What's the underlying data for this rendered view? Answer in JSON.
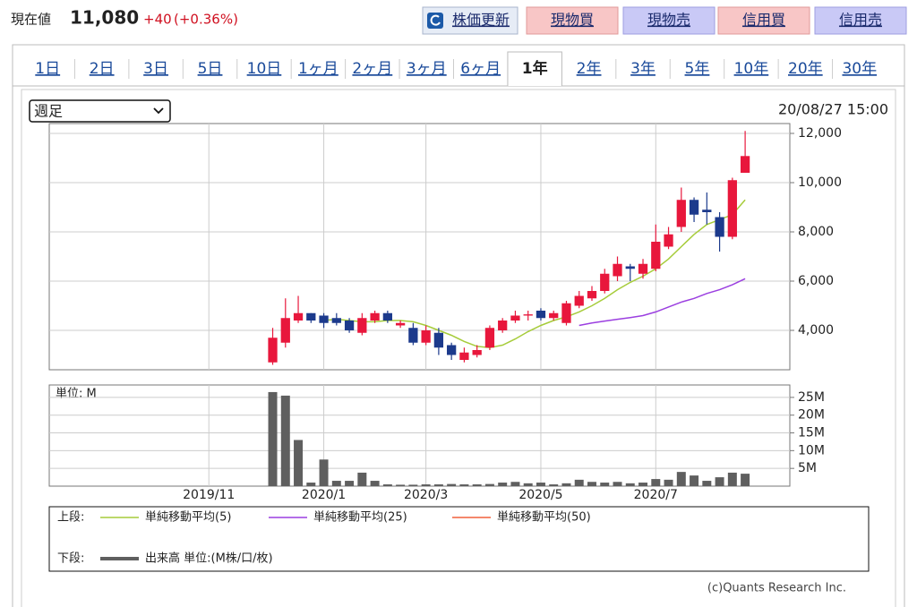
{
  "header": {
    "label": "現在値",
    "price": "11,080",
    "change": "+40",
    "change_pct": "(+0.36%)",
    "buttons": [
      "株価更新",
      "現物買",
      "現物売",
      "信用買",
      "信用売"
    ]
  },
  "tabs": [
    "1日",
    "2日",
    "3日",
    "5日",
    "10日",
    "1ヶ月",
    "2ヶ月",
    "3ヶ月",
    "6ヶ月",
    "1年",
    "2年",
    "3年",
    "5年",
    "10年",
    "20年",
    "30年"
  ],
  "active_tab": 9,
  "period_select": "週足",
  "timestamp": "20/08/27 15:00",
  "chart_data": {
    "type": "candlestick",
    "categories": [
      null,
      null,
      null,
      null,
      null,
      null,
      null,
      null,
      null,
      null,
      null,
      null,
      "2019/11",
      null,
      null,
      null,
      null,
      null,
      null,
      null,
      null,
      "2020/1",
      null,
      null,
      null,
      null,
      null,
      null,
      null,
      "2020/3",
      null,
      null,
      null,
      null,
      null,
      null,
      null,
      null,
      "2020/5",
      null,
      null,
      null,
      null,
      null,
      null,
      null,
      null,
      "2020/7",
      null,
      null,
      null,
      null,
      null,
      null,
      null,
      null,
      null,
      null
    ],
    "open": [
      null,
      null,
      null,
      null,
      null,
      null,
      null,
      null,
      null,
      null,
      null,
      null,
      null,
      null,
      null,
      null,
      null,
      2700,
      3500,
      4400,
      4700,
      4600,
      4500,
      4400,
      3900,
      4400,
      4700,
      4200,
      4100,
      3500,
      3900,
      3400,
      2800,
      3000,
      3300,
      4000,
      4400,
      4600,
      4800,
      4500,
      4300,
      5000,
      5300,
      5600,
      6200,
      6600,
      6300,
      6500,
      7400,
      8200,
      9300,
      8900,
      8600,
      7800,
      10400,
      null,
      null,
      null
    ],
    "high": [
      null,
      null,
      null,
      null,
      null,
      null,
      null,
      null,
      null,
      null,
      null,
      null,
      null,
      null,
      null,
      null,
      null,
      4100,
      5300,
      5400,
      4700,
      4700,
      4700,
      4500,
      4700,
      4800,
      4800,
      4400,
      4300,
      4200,
      4100,
      3500,
      3300,
      3400,
      4200,
      4500,
      4800,
      4800,
      4900,
      4800,
      5200,
      5600,
      5800,
      6500,
      7000,
      6700,
      6900,
      8300,
      8200,
      9800,
      9400,
      9600,
      8800,
      10200,
      12100,
      null,
      null,
      null
    ],
    "low": [
      null,
      null,
      null,
      null,
      null,
      null,
      null,
      null,
      null,
      null,
      null,
      null,
      null,
      null,
      null,
      null,
      null,
      2600,
      3300,
      4300,
      4300,
      4100,
      4200,
      3900,
      3800,
      4300,
      4300,
      4100,
      3400,
      3400,
      3000,
      2800,
      2700,
      2900,
      3200,
      3900,
      4300,
      4400,
      4400,
      4400,
      4200,
      4900,
      5200,
      5500,
      6000,
      6000,
      6100,
      6400,
      7300,
      8000,
      8400,
      8300,
      7200,
      7700,
      10400,
      null,
      null,
      null
    ],
    "close": [
      null,
      null,
      null,
      null,
      null,
      null,
      null,
      null,
      null,
      null,
      null,
      null,
      null,
      null,
      null,
      null,
      null,
      3700,
      4500,
      4700,
      4400,
      4300,
      4300,
      4000,
      4500,
      4700,
      4400,
      4300,
      3500,
      4000,
      3300,
      3000,
      3100,
      3200,
      4100,
      4400,
      4600,
      4650,
      4500,
      4700,
      5100,
      5400,
      5600,
      6300,
      6700,
      6500,
      6700,
      7600,
      7900,
      9300,
      8700,
      8800,
      7800,
      10100,
      11080,
      null,
      null,
      null
    ],
    "up_color": "#e8173c",
    "down_color": "#1c3a8c",
    "series": [
      {
        "name": "単純移動平均(5)",
        "color": "#a6cc3a",
        "values": [
          null,
          null,
          null,
          null,
          null,
          null,
          null,
          null,
          null,
          null,
          null,
          null,
          null,
          null,
          null,
          null,
          null,
          null,
          null,
          null,
          null,
          4400,
          4450,
          4400,
          4350,
          4350,
          4400,
          4400,
          4350,
          4200,
          4000,
          3800,
          3550,
          3350,
          3300,
          3400,
          3650,
          3950,
          4200,
          4400,
          4550,
          4750,
          5000,
          5300,
          5650,
          5950,
          6200,
          6500,
          6900,
          7400,
          7900,
          8300,
          8500,
          8700,
          9300,
          null,
          null,
          null
        ]
      },
      {
        "name": "単純移動平均(25)",
        "color": "#9b3fe0",
        "values": [
          null,
          null,
          null,
          null,
          null,
          null,
          null,
          null,
          null,
          null,
          null,
          null,
          null,
          null,
          null,
          null,
          null,
          null,
          null,
          null,
          null,
          null,
          null,
          null,
          null,
          null,
          null,
          null,
          null,
          null,
          null,
          null,
          null,
          null,
          null,
          null,
          null,
          null,
          null,
          null,
          null,
          4200,
          4300,
          4380,
          4450,
          4520,
          4600,
          4750,
          4950,
          5150,
          5300,
          5500,
          5650,
          5850,
          6100,
          null,
          null,
          null
        ]
      },
      {
        "name": "単純移動平均(50)",
        "color": "#f0603c",
        "values": [
          null,
          null,
          null,
          null,
          null,
          null,
          null,
          null,
          null,
          null,
          null,
          null,
          null,
          null,
          null,
          null,
          null,
          null,
          null,
          null,
          null,
          null,
          null,
          null,
          null,
          null,
          null,
          null,
          null,
          null,
          null,
          null,
          null,
          null,
          null,
          null,
          null,
          null,
          null,
          null,
          null,
          null,
          null,
          null,
          null,
          null,
          null,
          null,
          null,
          null,
          null,
          null,
          null,
          null,
          null,
          null,
          null,
          null
        ]
      }
    ],
    "ylim": [
      2400,
      12400
    ],
    "yticks": [
      {
        "value": 4000,
        "label": "4,000"
      },
      {
        "value": 6000,
        "label": "6,000"
      },
      {
        "value": 8000,
        "label": "8,000"
      },
      {
        "value": 10000,
        "label": "10,000"
      },
      {
        "value": 12000,
        "label": "12,000"
      }
    ],
    "grid": true,
    "volume": {
      "type": "bar",
      "name": "出来高 単位:(M株/口/枚)",
      "unit_label": "単位: M",
      "color": "#5f5f5f",
      "values": [
        null,
        null,
        null,
        null,
        null,
        null,
        null,
        null,
        null,
        null,
        null,
        null,
        null,
        null,
        null,
        null,
        null,
        26.5,
        25.5,
        13,
        1,
        7.5,
        1.5,
        1.5,
        3.8,
        1.5,
        0.5,
        0.4,
        0.4,
        0.5,
        0.5,
        0.6,
        0.5,
        0.5,
        0.6,
        1.0,
        1.2,
        0.8,
        1.0,
        0.5,
        0.8,
        1.8,
        1.2,
        1.0,
        1.2,
        0.8,
        1.0,
        2.0,
        1.8,
        4.0,
        3.0,
        1.5,
        2.5,
        3.8,
        3.5,
        null,
        null,
        null
      ],
      "ylim": [
        0,
        28.5
      ],
      "yticks": [
        {
          "value": 5,
          "label": "5M"
        },
        {
          "value": 10,
          "label": "10M"
        },
        {
          "value": 15,
          "label": "15M"
        },
        {
          "value": 20,
          "label": "20M"
        },
        {
          "value": 25,
          "label": "25M"
        }
      ]
    },
    "legend": {
      "upper_label": "上段:",
      "lower_label": "下段:"
    }
  },
  "copyright": "(c)Quants Research Inc."
}
